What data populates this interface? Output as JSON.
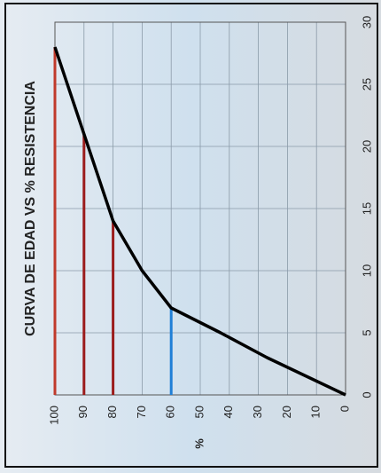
{
  "chart_data": {
    "type": "line",
    "title": "CURVA DE EDAD VS % RESISTENCIA",
    "y_label": "%",
    "x": [
      0,
      3,
      5,
      7,
      10,
      14,
      21,
      28
    ],
    "series": [
      {
        "color": "#000000",
        "values": [
          0,
          27,
          43,
          60,
          70,
          80,
          90,
          100
        ]
      }
    ],
    "reference_lines": [
      {
        "x": 28,
        "y": 100,
        "color": "#c0392b"
      },
      {
        "x": 21,
        "y": 90,
        "color": "#9b1c1c"
      },
      {
        "x": 14,
        "y": 80,
        "color": "#9b1c1c"
      },
      {
        "x": 7,
        "y": 60,
        "color": "#1f7fd6"
      }
    ],
    "xlim": [
      0,
      30
    ],
    "xticks": [
      0,
      5,
      10,
      15,
      20,
      25,
      30
    ],
    "ylim": [
      0,
      100
    ],
    "yticks": [
      0,
      10,
      20,
      30,
      40,
      50,
      60,
      70,
      80,
      90,
      100
    ],
    "grid": true
  }
}
